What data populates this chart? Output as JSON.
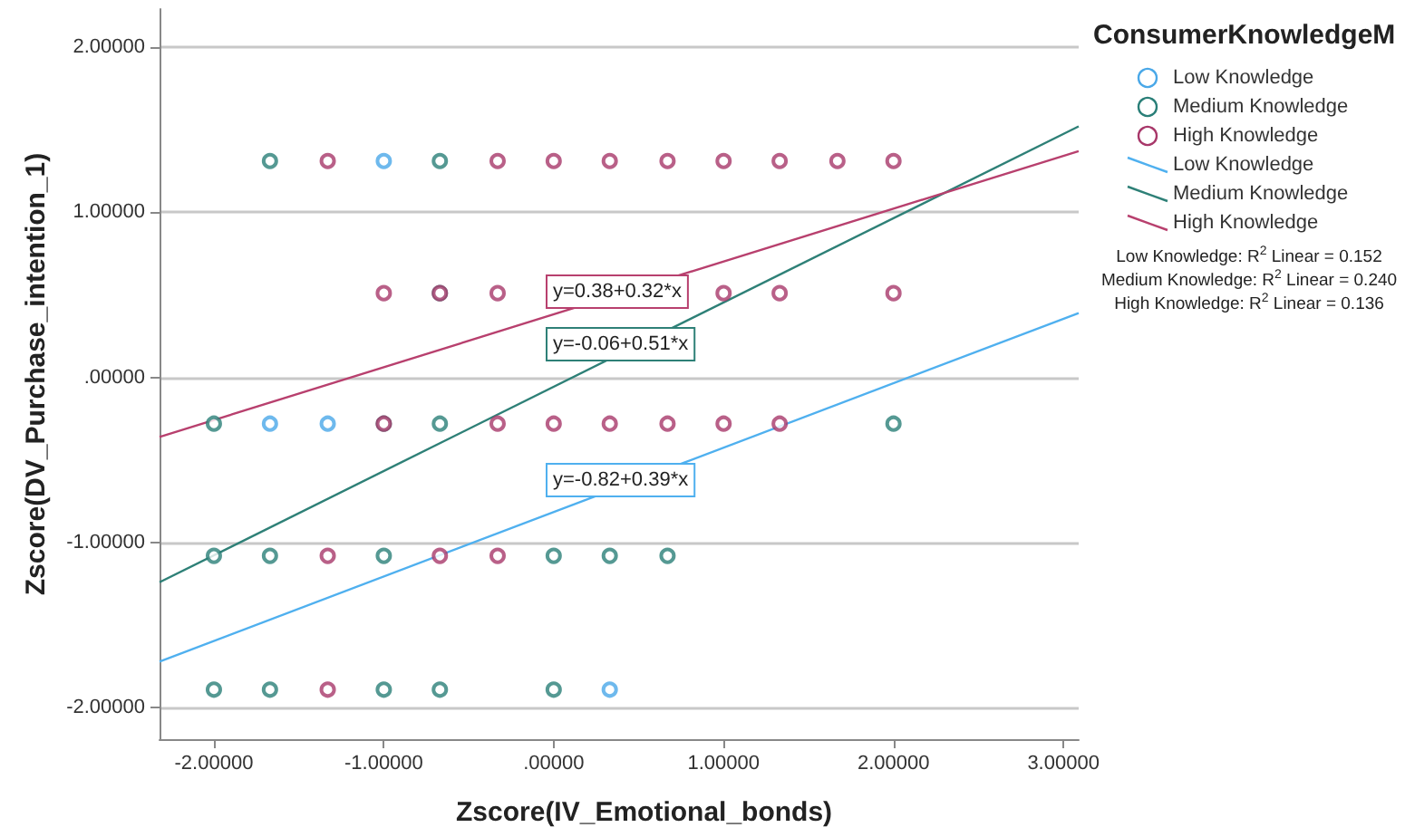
{
  "chart_data": {
    "type": "scatter",
    "xlabel": "Zscore(IV_Emotional_bonds)",
    "ylabel": "Zscore(DV_Purchase_intention_1)",
    "legend_title": "ConsumerKnowledgeM",
    "xlim": [
      -2.32,
      3.09
    ],
    "ylim": [
      -2.19,
      2.23
    ],
    "xticks": [
      {
        "value": -2,
        "label": "-2.00000"
      },
      {
        "value": -1,
        "label": "-1.00000"
      },
      {
        "value": 0,
        "label": ".00000"
      },
      {
        "value": 1,
        "label": "1.00000"
      },
      {
        "value": 2,
        "label": "2.00000"
      },
      {
        "value": 3,
        "label": "3.00000"
      }
    ],
    "yticks": [
      {
        "value": -2,
        "label": "-2.00000"
      },
      {
        "value": -1,
        "label": "-1.00000"
      },
      {
        "value": 0,
        "label": ".00000"
      },
      {
        "value": 1,
        "label": "1.00000"
      },
      {
        "value": 2,
        "label": "2.00000"
      }
    ],
    "grid": "y",
    "legend": "top right",
    "marker": "circle",
    "series": [
      {
        "name": "Low Knowledge",
        "color": "#4aa8e8",
        "x": [
          -1.0,
          -1.67,
          -1.33,
          0.33
        ],
        "values": [
          1.31,
          -0.28,
          -0.28,
          -1.89
        ]
      },
      {
        "name": "Medium Knowledge",
        "color": "#2a7f78",
        "x": [
          -1.67,
          -0.67,
          -0.67,
          -2.0,
          -1.0,
          -0.67,
          2.0,
          -2.0,
          -1.67,
          -1.0,
          0.0,
          0.33,
          0.67,
          -2.0,
          -1.67,
          -1.0,
          -0.67,
          0.0
        ],
        "values": [
          1.31,
          1.31,
          0.51,
          -0.28,
          -0.28,
          -0.28,
          -0.28,
          -1.08,
          -1.08,
          -1.08,
          -1.08,
          -1.08,
          -1.08,
          -1.89,
          -1.89,
          -1.89,
          -1.89,
          -1.89
        ]
      },
      {
        "name": "High Knowledge",
        "color": "#a8386a",
        "x": [
          -1.33,
          -0.33,
          0.0,
          0.33,
          0.67,
          1.0,
          1.33,
          1.67,
          2.0,
          -1.0,
          -0.67,
          -0.33,
          1.0,
          1.33,
          2.0,
          -1.0,
          -0.33,
          0.0,
          0.33,
          0.67,
          1.0,
          1.33,
          -1.33,
          -0.67,
          -0.33,
          -1.33
        ],
        "values": [
          1.31,
          1.31,
          1.31,
          1.31,
          1.31,
          1.31,
          1.31,
          1.31,
          1.31,
          0.51,
          0.51,
          0.51,
          0.51,
          0.51,
          0.51,
          -0.28,
          -0.28,
          -0.28,
          -0.28,
          -0.28,
          -0.28,
          -0.28,
          -1.08,
          -1.08,
          -1.08,
          -1.89
        ]
      },
      {
        "name": "Low Knowledge",
        "type": "line",
        "marker": "none",
        "color": "#4fb0ef",
        "x": [
          -2.32,
          3.09
        ],
        "values": [
          -1.72,
          0.39
        ]
      },
      {
        "name": "Medium Knowledge",
        "type": "line",
        "marker": "none",
        "color": "#2e8077",
        "x": [
          -2.32,
          3.09
        ],
        "values": [
          -1.24,
          1.52
        ]
      },
      {
        "name": "High Knowledge",
        "type": "line",
        "marker": "none",
        "color": "#b8406e",
        "x": [
          -2.32,
          3.09
        ],
        "values": [
          -0.36,
          1.37
        ]
      }
    ],
    "annotations": [
      "y=-0.82+0.39*x",
      "y=-0.06+0.51*x",
      "y=0.38+0.32*x",
      "Low Knowledge: R$^{2}$ Linear = 0.152",
      "Medium Knowledge: R$^{2}$ Linear = 0.240",
      "High Knowledge: R$^{2}$ Linear = 0.136"
    ]
  }
}
